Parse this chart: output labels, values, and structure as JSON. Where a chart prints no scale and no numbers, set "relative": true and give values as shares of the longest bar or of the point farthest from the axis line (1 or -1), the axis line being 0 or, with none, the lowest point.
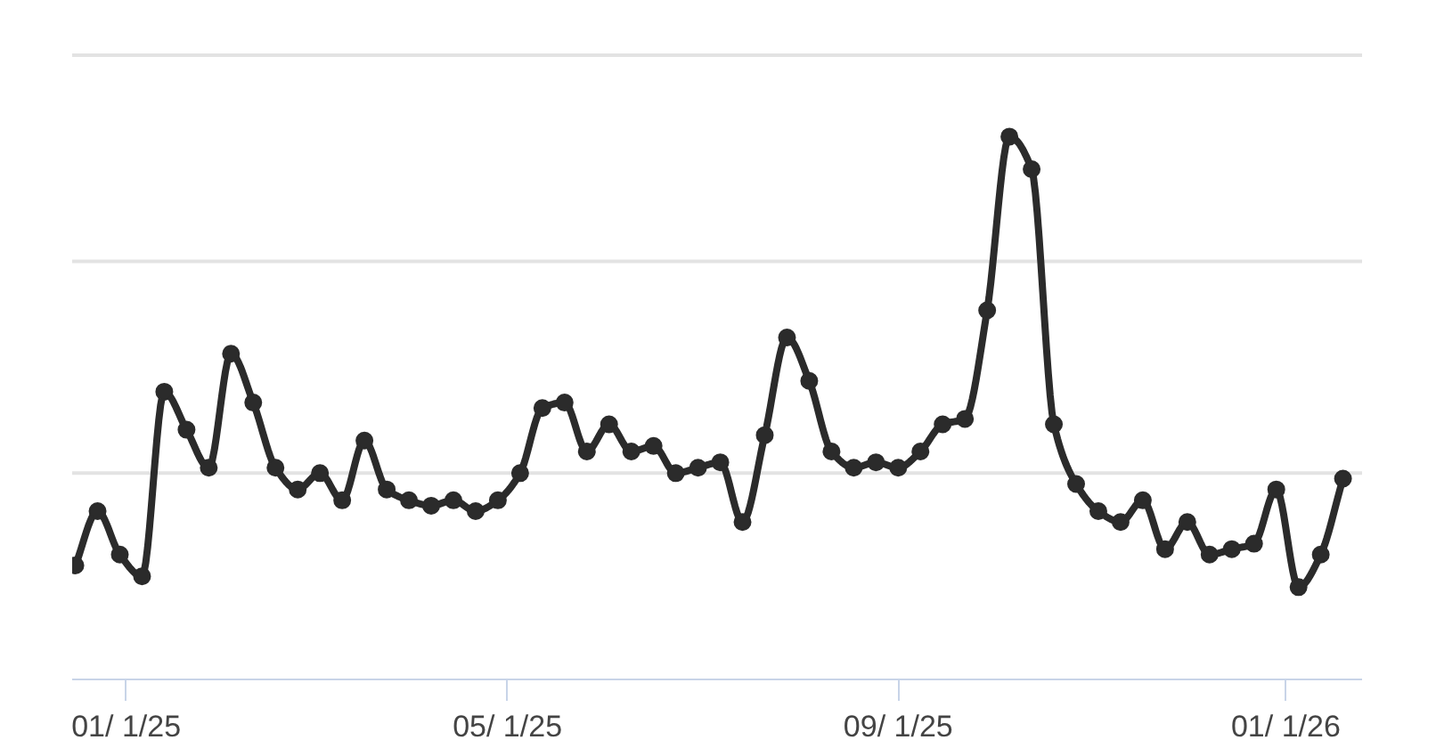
{
  "chart_data": {
    "type": "line",
    "relative": true,
    "x": [
      "2024-12-16",
      "2024-12-23",
      "2024-12-30",
      "2025-01-06",
      "2025-01-13",
      "2025-01-20",
      "2025-01-27",
      "2025-02-03",
      "2025-02-10",
      "2025-02-17",
      "2025-02-24",
      "2025-03-03",
      "2025-03-10",
      "2025-03-17",
      "2025-03-24",
      "2025-03-31",
      "2025-04-07",
      "2025-04-14",
      "2025-04-21",
      "2025-04-28",
      "2025-05-05",
      "2025-05-12",
      "2025-05-19",
      "2025-05-26",
      "2025-06-02",
      "2025-06-09",
      "2025-06-16",
      "2025-06-23",
      "2025-06-30",
      "2025-07-07",
      "2025-07-14",
      "2025-07-21",
      "2025-07-28",
      "2025-08-04",
      "2025-08-11",
      "2025-08-18",
      "2025-08-25",
      "2025-09-01",
      "2025-09-08",
      "2025-09-15",
      "2025-09-22",
      "2025-09-29",
      "2025-10-06",
      "2025-10-13",
      "2025-10-20",
      "2025-10-27",
      "2025-11-03",
      "2025-11-10",
      "2025-11-17",
      "2025-11-24",
      "2025-12-01",
      "2025-12-08",
      "2025-12-15",
      "2025-12-22",
      "2025-12-29",
      "2026-01-05",
      "2026-01-12",
      "2026-01-19"
    ],
    "series": [
      {
        "color": "#2b2b2b",
        "values": [
          0.21,
          0.31,
          0.23,
          0.19,
          0.53,
          0.46,
          0.39,
          0.6,
          0.51,
          0.39,
          0.35,
          0.38,
          0.33,
          0.44,
          0.35,
          0.33,
          0.32,
          0.33,
          0.31,
          0.33,
          0.38,
          0.5,
          0.51,
          0.42,
          0.47,
          0.42,
          0.43,
          0.38,
          0.39,
          0.4,
          0.29,
          0.45,
          0.63,
          0.55,
          0.42,
          0.39,
          0.4,
          0.39,
          0.42,
          0.47,
          0.48,
          0.68,
          1.0,
          0.94,
          0.47,
          0.36,
          0.31,
          0.29,
          0.33,
          0.24,
          0.29,
          0.23,
          0.24,
          0.25,
          0.35,
          0.17,
          0.23,
          0.37
        ]
      }
    ],
    "xlim": [
      "2024-12-15",
      "2026-01-25"
    ],
    "xticks": [
      {
        "value": "2025-01-01",
        "label": "01/ 1/25"
      },
      {
        "value": "2025-05-01",
        "label": "05/ 1/25"
      },
      {
        "value": "2025-09-01",
        "label": "09/ 1/25"
      },
      {
        "value": "2026-01-01",
        "label": "01/ 1/26"
      }
    ],
    "ref_lines": [
      {
        "axis": "y",
        "value": 0.38,
        "color": "#e3e3e3"
      },
      {
        "axis": "y",
        "value": 0.77,
        "color": "#e3e3e3"
      },
      {
        "axis": "y",
        "value": 1.15,
        "color": "#e3e3e3"
      }
    ],
    "marker": "circle",
    "line_style": "solid"
  }
}
